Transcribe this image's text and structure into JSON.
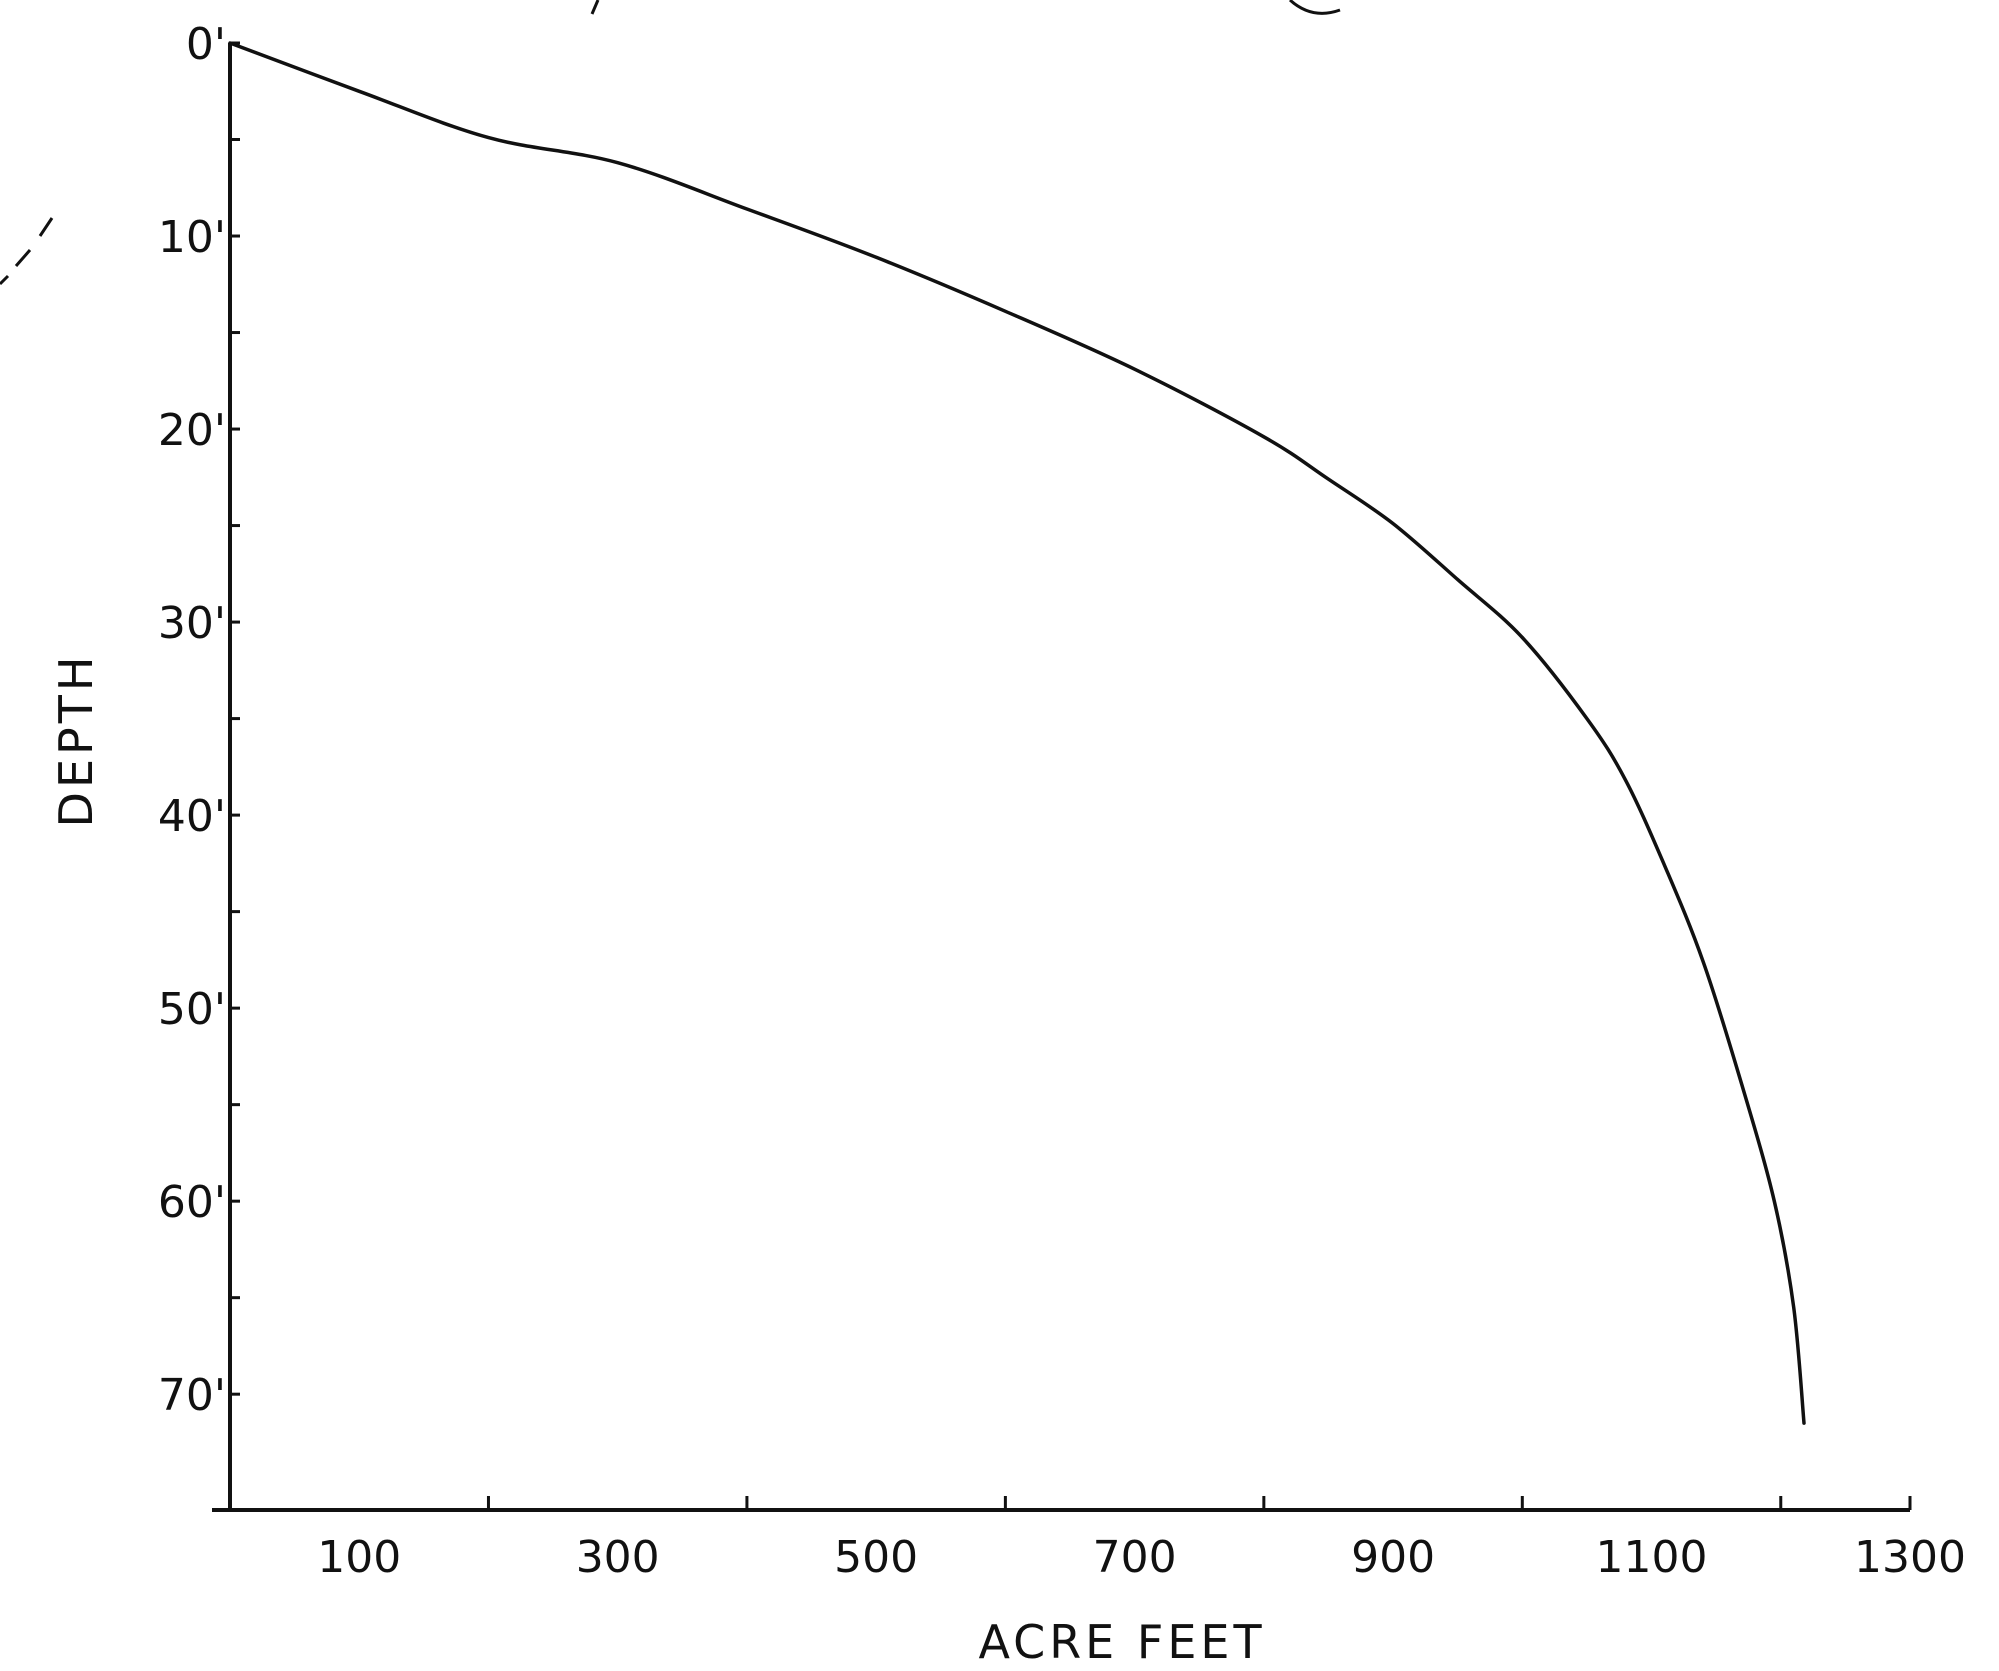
{
  "chart_data": {
    "type": "line",
    "title": "",
    "xlabel": "ACRE FEET",
    "ylabel": "DEPTH",
    "xlim": [
      0,
      1300
    ],
    "ylim": [
      0,
      76
    ],
    "y_inverted": true,
    "grid": false,
    "x_tick_labels": [
      {
        "value": 100,
        "label": "100"
      },
      {
        "value": 300,
        "label": "300"
      },
      {
        "value": 500,
        "label": "500"
      },
      {
        "value": 700,
        "label": "700"
      },
      {
        "value": 900,
        "label": "900"
      },
      {
        "value": 1100,
        "label": "1100"
      },
      {
        "value": 1300,
        "label": "1300"
      }
    ],
    "x_minor_ticks": [
      200,
      400,
      600,
      800,
      1000,
      1200,
      1300
    ],
    "y_tick_labels": [
      {
        "value": 0,
        "label": "0'"
      },
      {
        "value": 10,
        "label": "10'"
      },
      {
        "value": 20,
        "label": "20'"
      },
      {
        "value": 30,
        "label": "30'"
      },
      {
        "value": 40,
        "label": "40'"
      },
      {
        "value": 50,
        "label": "50'"
      },
      {
        "value": 60,
        "label": "60'"
      },
      {
        "value": 70,
        "label": "70'"
      }
    ],
    "y_minor_ticks": [
      5,
      15,
      25,
      35,
      45,
      55,
      65
    ],
    "series": [
      {
        "x": [
          0,
          100,
          200,
          300,
          400,
          500,
          600,
          700,
          800,
          850,
          900,
          950,
          1000,
          1050,
          1080,
          1110,
          1140,
          1170,
          1195,
          1210,
          1218
        ],
        "y": [
          0,
          2.5,
          4.9,
          6.2,
          8.6,
          11.1,
          13.9,
          16.9,
          20.4,
          22.6,
          24.9,
          27.8,
          30.8,
          35.0,
          38.2,
          42.6,
          47.6,
          54.0,
          60.0,
          65.5,
          71.5
        ]
      }
    ]
  }
}
